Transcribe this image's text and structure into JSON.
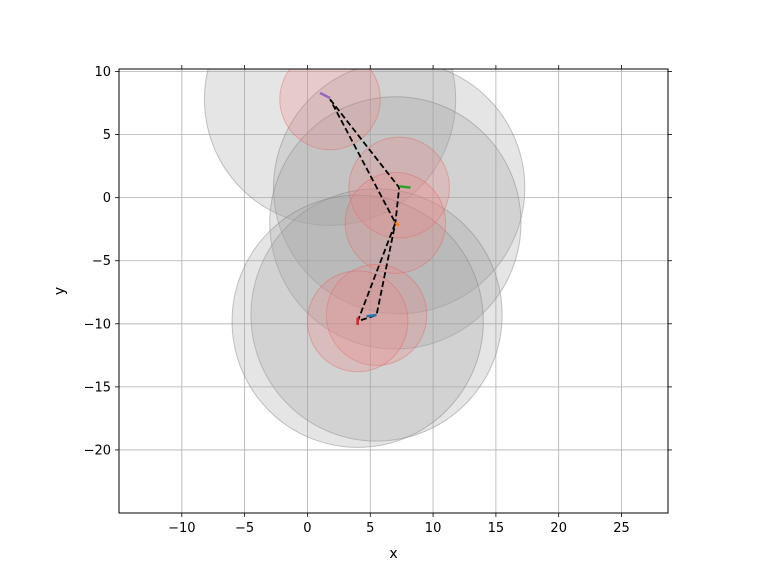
{
  "chart_data": {
    "type": "scatter",
    "title": "",
    "xlabel": "x",
    "ylabel": "y",
    "xlim": [
      -15,
      28.7
    ],
    "ylim": [
      -25,
      10.2
    ],
    "xticks": [
      -10,
      -5,
      0,
      5,
      10,
      15,
      20,
      25
    ],
    "yticks": [
      10,
      5,
      0,
      -5,
      -10,
      -15,
      -20
    ],
    "xtick_labels": [
      "−10",
      "−5",
      "0",
      "5",
      "10",
      "15",
      "20",
      "25"
    ],
    "ytick_labels": [
      "10",
      "5",
      "0",
      "−5",
      "−10",
      "−15",
      "−20"
    ],
    "grid": true,
    "colors": {
      "grey_circle_fill": "#a0a0a0",
      "red_circle_fill": "#f08080",
      "path": "#000000"
    },
    "large_circles": [
      {
        "cx": 1.8,
        "cy": 7.8,
        "r": 10.0
      },
      {
        "cx": 7.3,
        "cy": 0.8,
        "r": 10.0
      },
      {
        "cx": 7.0,
        "cy": -2.0,
        "r": 10.0
      },
      {
        "cx": 5.5,
        "cy": -9.3,
        "r": 10.0
      },
      {
        "cx": 4.0,
        "cy": -9.8,
        "r": 10.0
      }
    ],
    "small_circles": [
      {
        "cx": 1.8,
        "cy": 7.8,
        "r": 4.0
      },
      {
        "cx": 7.3,
        "cy": 0.8,
        "r": 4.0
      },
      {
        "cx": 7.0,
        "cy": -2.0,
        "r": 4.0
      },
      {
        "cx": 5.5,
        "cy": -9.3,
        "r": 4.0
      },
      {
        "cx": 4.0,
        "cy": -9.8,
        "r": 4.0
      }
    ],
    "dashed_path": [
      {
        "x": 1.8,
        "y": 7.8
      },
      {
        "x": 7.3,
        "y": 0.8
      },
      {
        "x": 7.0,
        "y": -2.0
      },
      {
        "x": 5.5,
        "y": -9.3
      },
      {
        "x": 4.0,
        "y": -9.8
      },
      {
        "x": 7.0,
        "y": -2.0
      },
      {
        "x": 1.8,
        "y": 7.8
      }
    ],
    "markers": [
      {
        "color": "#9467bd",
        "points": [
          [
            1.0,
            8.3
          ],
          [
            1.8,
            7.9
          ]
        ]
      },
      {
        "color": "#2ca02c",
        "points": [
          [
            7.3,
            0.9
          ],
          [
            8.2,
            0.8
          ]
        ]
      },
      {
        "color": "#ff7f0e",
        "points": [
          [
            7.0,
            -2.0
          ],
          [
            7.3,
            -2.2
          ]
        ]
      },
      {
        "color": "#1f77b4",
        "points": [
          [
            4.7,
            -9.4
          ],
          [
            5.5,
            -9.3
          ]
        ]
      },
      {
        "color": "#d62728",
        "points": [
          [
            4.0,
            -9.5
          ],
          [
            4.0,
            -10.1
          ]
        ]
      }
    ]
  }
}
